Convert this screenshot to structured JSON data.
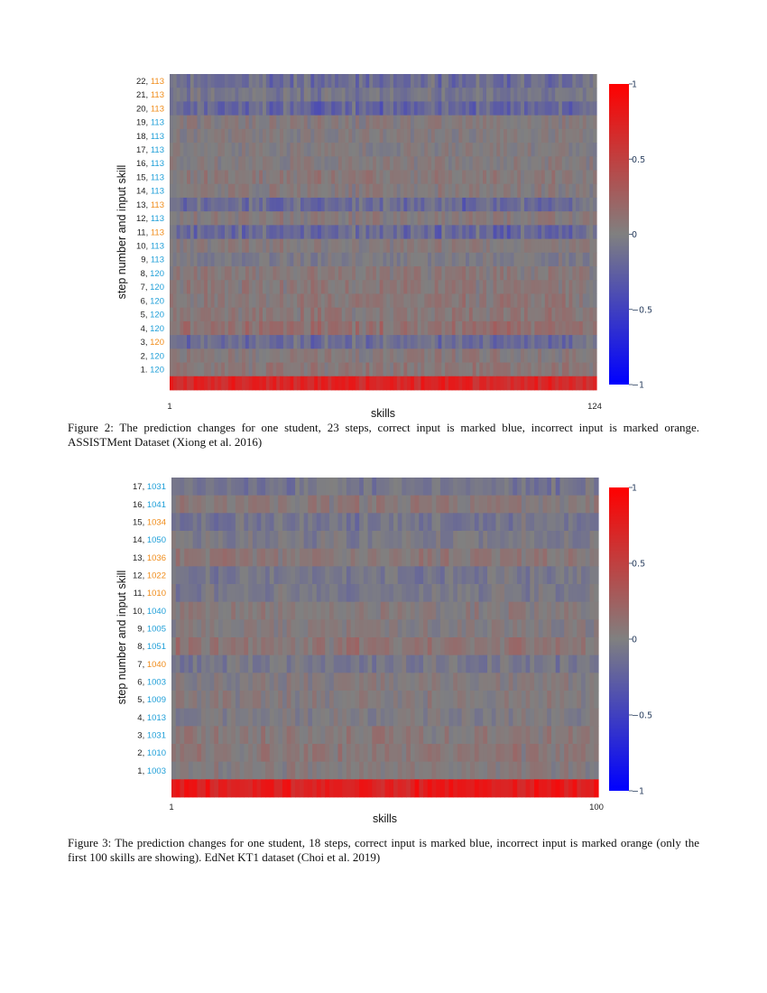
{
  "chart_data": [
    {
      "type": "heatmap",
      "ylabel": "step number and input skill",
      "xlabel": "skills",
      "x_ticks": [
        "1",
        "124"
      ],
      "n_skills": 124,
      "colorscale": {
        "min": -1,
        "mid": 0,
        "max": 1,
        "low_color": "#0000ff",
        "mid_color": "#808080",
        "high_color": "#ff0000"
      },
      "colorbar_ticks": [
        "1",
        "0.5",
        "0",
        "−0.5",
        "−1"
      ],
      "correct_color": "#1f9fd8",
      "incorrect_color": "#f08c1a",
      "rows": [
        {
          "step": "22,",
          "skill": "113",
          "correct": false,
          "mean": -0.15
        },
        {
          "step": "21,",
          "skill": "113",
          "correct": false,
          "mean": -0.08
        },
        {
          "step": "20,",
          "skill": "113",
          "correct": false,
          "mean": -0.2
        },
        {
          "step": "19,",
          "skill": "113",
          "correct": true,
          "mean": 0.02
        },
        {
          "step": "18,",
          "skill": "113",
          "correct": true,
          "mean": 0.01
        },
        {
          "step": "17,",
          "skill": "113",
          "correct": true,
          "mean": 0.01
        },
        {
          "step": "16,",
          "skill": "113",
          "correct": true,
          "mean": 0.02
        },
        {
          "step": "15,",
          "skill": "113",
          "correct": true,
          "mean": 0.06
        },
        {
          "step": "14,",
          "skill": "113",
          "correct": true,
          "mean": 0.03
        },
        {
          "step": "13,",
          "skill": "113",
          "correct": false,
          "mean": -0.16
        },
        {
          "step": "12,",
          "skill": "113",
          "correct": true,
          "mean": 0.04
        },
        {
          "step": "11,",
          "skill": "113",
          "correct": false,
          "mean": -0.18
        },
        {
          "step": "10,",
          "skill": "113",
          "correct": true,
          "mean": 0.03
        },
        {
          "step": "9,",
          "skill": "113",
          "correct": true,
          "mean": -0.03
        },
        {
          "step": "8,",
          "skill": "120",
          "correct": true,
          "mean": 0.05
        },
        {
          "step": "7,",
          "skill": "120",
          "correct": true,
          "mean": 0.06
        },
        {
          "step": "6,",
          "skill": "120",
          "correct": true,
          "mean": 0.06
        },
        {
          "step": "5,",
          "skill": "120",
          "correct": true,
          "mean": 0.07
        },
        {
          "step": "4,",
          "skill": "120",
          "correct": true,
          "mean": 0.12
        },
        {
          "step": "3,",
          "skill": "120",
          "correct": false,
          "mean": -0.15
        },
        {
          "step": "2,",
          "skill": "120",
          "correct": true,
          "mean": 0.04
        },
        {
          "step": "1.",
          "skill": "120",
          "correct": true,
          "mean": 0.07
        },
        {
          "step": "",
          "skill": "",
          "correct": true,
          "mean": 0.78
        }
      ]
    },
    {
      "type": "heatmap",
      "ylabel": "step number and input skill",
      "xlabel": "skills",
      "x_ticks": [
        "1",
        "100"
      ],
      "n_skills": 100,
      "colorscale": {
        "min": -1,
        "mid": 0,
        "max": 1,
        "low_color": "#0000ff",
        "mid_color": "#808080",
        "high_color": "#ff0000"
      },
      "colorbar_ticks": [
        "1",
        "0.5",
        "0",
        "−0.5",
        "−1"
      ],
      "correct_color": "#1f9fd8",
      "incorrect_color": "#f08c1a",
      "rows": [
        {
          "step": "17,",
          "skill": "1031",
          "correct": true,
          "mean": -0.08
        },
        {
          "step": "16,",
          "skill": "1041",
          "correct": true,
          "mean": 0.05
        },
        {
          "step": "15,",
          "skill": "1034",
          "correct": false,
          "mean": -0.08
        },
        {
          "step": "14,",
          "skill": "1050",
          "correct": true,
          "mean": -0.04
        },
        {
          "step": "13,",
          "skill": "1036",
          "correct": false,
          "mean": 0.06
        },
        {
          "step": "12,",
          "skill": "1022",
          "correct": false,
          "mean": -0.06
        },
        {
          "step": "11,",
          "skill": "1010",
          "correct": false,
          "mean": -0.05
        },
        {
          "step": "10,",
          "skill": "1040",
          "correct": true,
          "mean": 0.03
        },
        {
          "step": "9,",
          "skill": "1005",
          "correct": true,
          "mean": 0.02
        },
        {
          "step": "8,",
          "skill": "1051",
          "correct": true,
          "mean": 0.09
        },
        {
          "step": "7,",
          "skill": "1040",
          "correct": false,
          "mean": -0.07
        },
        {
          "step": "6,",
          "skill": "1003",
          "correct": true,
          "mean": 0.01
        },
        {
          "step": "5,",
          "skill": "1009",
          "correct": true,
          "mean": 0.02
        },
        {
          "step": "4,",
          "skill": "1013",
          "correct": true,
          "mean": -0.02
        },
        {
          "step": "3,",
          "skill": "1031",
          "correct": true,
          "mean": 0.05
        },
        {
          "step": "2,",
          "skill": "1010",
          "correct": true,
          "mean": 0.06
        },
        {
          "step": "1,",
          "skill": "1003",
          "correct": true,
          "mean": 0.03
        },
        {
          "step": "",
          "skill": "",
          "correct": true,
          "mean": 0.85
        }
      ]
    }
  ],
  "captions": [
    "Figure 2: The prediction changes for one student, 23 steps, correct input is marked blue, incorrect input is marked orange. ASSISTMent Dataset (Xiong et al. 2016)",
    "Figure 3: The prediction changes for one student, 18 steps, correct input is marked blue, incorrect input is marked orange (only the first 100 skills are showing). EdNet KT1 dataset (Choi et al. 2019)"
  ]
}
